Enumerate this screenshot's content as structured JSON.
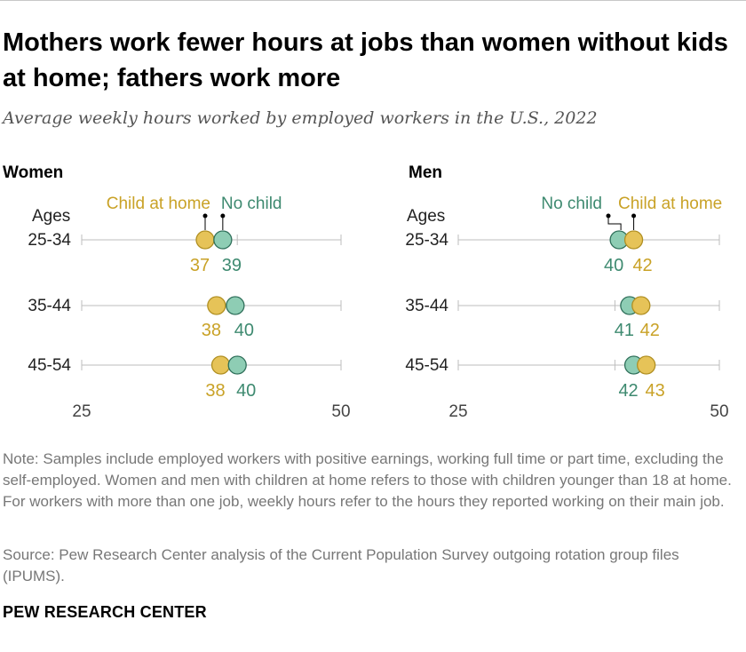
{
  "title": "Mothers work fewer hours at jobs than women without kids at home; fathers work more",
  "subtitle": "Average weekly hours worked by employed workers in the U.S., 2022",
  "note": "Note: Samples include employed workers with positive earnings, working full time or part time, excluding the self-employed. Women and men with children at home refers to those with children younger than 18 at home. For workers with more than one job, weekly hours refer to the hours they reported working on their main job.",
  "source": "Source: Pew Research Center analysis of the Current Population Survey outgoing rotation group files (IPUMS).",
  "branding": "PEW RESEARCH CENTER",
  "colors": {
    "child_at_home": "#e6c358",
    "child_at_home_text": "#c9a227",
    "no_child": "#8ecdb4",
    "no_child_text": "#3e8a70",
    "axis": "#bdbdbd"
  },
  "chart_data": [
    {
      "type": "scatter",
      "subtype": "dot-plot",
      "panel": "Women",
      "row_header": "Ages",
      "categories": [
        "25-34",
        "35-44",
        "45-54"
      ],
      "xlim": [
        25,
        50
      ],
      "x_ticks": [
        25,
        50
      ],
      "series": [
        {
          "name": "Child at home",
          "values": [
            37,
            38,
            38
          ],
          "plot_values": [
            36.9,
            38.0,
            38.4
          ]
        },
        {
          "name": "No child",
          "values": [
            39,
            40,
            40
          ],
          "plot_values": [
            38.6,
            39.8,
            40.0
          ]
        }
      ]
    },
    {
      "type": "scatter",
      "subtype": "dot-plot",
      "panel": "Men",
      "row_header": "Ages",
      "categories": [
        "25-34",
        "35-44",
        "45-54"
      ],
      "xlim": [
        25,
        50
      ],
      "x_ticks": [
        25,
        50
      ],
      "series": [
        {
          "name": "No child",
          "values": [
            40,
            41,
            42
          ],
          "plot_values": [
            40.4,
            41.4,
            41.8
          ]
        },
        {
          "name": "Child at home",
          "values": [
            42,
            42,
            43
          ],
          "plot_values": [
            41.8,
            42.5,
            43.0
          ]
        }
      ]
    }
  ]
}
